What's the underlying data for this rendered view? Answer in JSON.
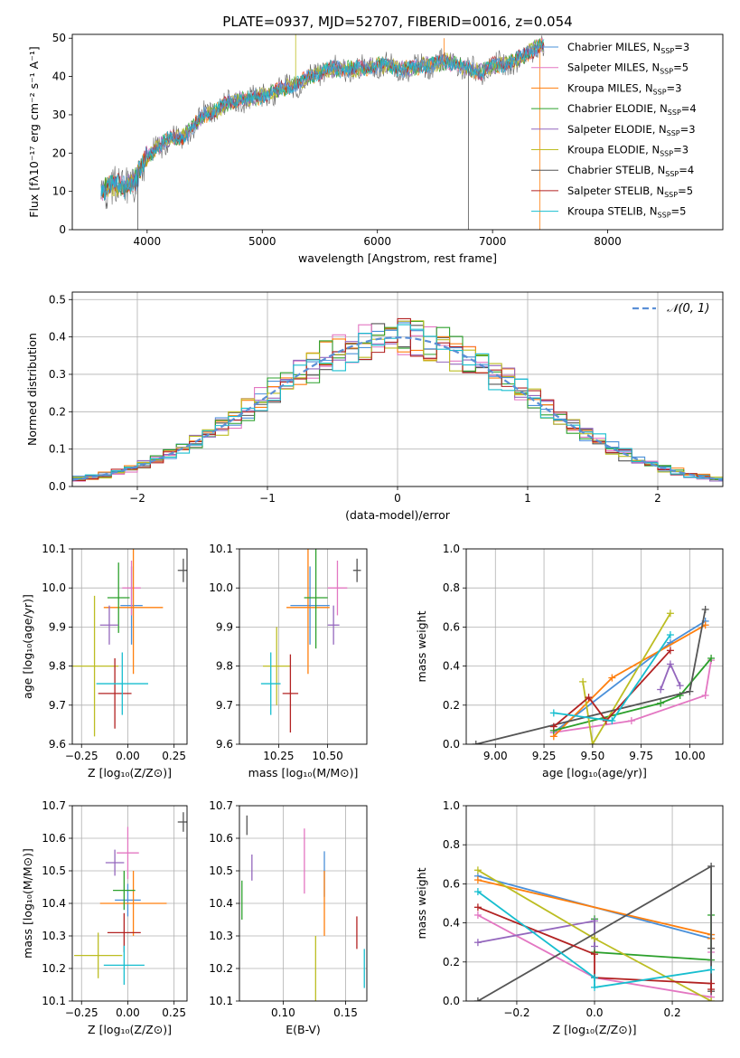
{
  "figure_title": "PLATE=0937, MJD=52707, FIBERID=0016, z=0.054",
  "models": [
    {
      "name": "Chabrier MILES",
      "nssp": "3",
      "color": "#4a90d9"
    },
    {
      "name": "Salpeter MILES",
      "nssp": "5",
      "color": "#e377c2"
    },
    {
      "name": "Kroupa MILES",
      "nssp": "3",
      "color": "#ff7f0e"
    },
    {
      "name": "Chabrier ELODIE",
      "nssp": "4",
      "color": "#2ca02c"
    },
    {
      "name": "Salpeter ELODIE",
      "nssp": "3",
      "color": "#9467bd"
    },
    {
      "name": "Kroupa ELODIE",
      "nssp": "3",
      "color": "#bcbd22"
    },
    {
      "name": "Chabrier STELIB",
      "nssp": "4",
      "color": "#555555"
    },
    {
      "name": "Salpeter STELIB",
      "nssp": "5",
      "color": "#b22222"
    },
    {
      "name": "Kroupa STELIB",
      "nssp": "5",
      "color": "#17becf"
    }
  ],
  "legend_prefix": "N",
  "legend_sub": "SSP",
  "chart_data": [
    {
      "id": "spectrum",
      "type": "line",
      "title": "PLATE=0937, MJD=52707, FIBERID=0016, z=0.054",
      "xlabel": "wavelength [Angstrom, rest frame]",
      "ylabel": "Flux [fλ10⁻¹⁷ erg cm⁻² s⁻¹ A⁻¹]",
      "xlim": [
        3350,
        9000
      ],
      "ylim": [
        0,
        51
      ],
      "xticks": [
        4000,
        5000,
        6000,
        7000,
        8000
      ],
      "yticks": [
        0,
        10,
        20,
        30,
        40,
        50
      ],
      "legend": "top-right",
      "continuum": [
        [
          3600,
          10
        ],
        [
          3700,
          12
        ],
        [
          3800,
          11
        ],
        [
          3900,
          13
        ],
        [
          4000,
          19
        ],
        [
          4100,
          22
        ],
        [
          4200,
          24
        ],
        [
          4300,
          24
        ],
        [
          4400,
          27
        ],
        [
          4500,
          30
        ],
        [
          4600,
          31
        ],
        [
          4700,
          33
        ],
        [
          4800,
          34
        ],
        [
          4900,
          34
        ],
        [
          5000,
          35
        ],
        [
          5100,
          36
        ],
        [
          5200,
          37
        ],
        [
          5300,
          38
        ],
        [
          5400,
          40
        ],
        [
          5500,
          41
        ],
        [
          5600,
          42
        ],
        [
          5700,
          42
        ],
        [
          5800,
          42
        ],
        [
          5900,
          42
        ],
        [
          6000,
          43
        ],
        [
          6100,
          43
        ],
        [
          6200,
          42
        ],
        [
          6300,
          42
        ],
        [
          6400,
          43
        ],
        [
          6500,
          43
        ],
        [
          6600,
          44
        ],
        [
          6700,
          43
        ],
        [
          6800,
          42
        ],
        [
          6900,
          41
        ],
        [
          7000,
          43
        ],
        [
          7100,
          43
        ],
        [
          7200,
          44
        ],
        [
          7300,
          46
        ],
        [
          7400,
          48
        ],
        [
          7450,
          48
        ]
      ],
      "spikes": [
        {
          "x": 3920,
          "y": -2
        },
        {
          "x": 5290,
          "y": 51
        },
        {
          "x": 6580,
          "y": 50
        },
        {
          "x": 6790,
          "y": -2
        },
        {
          "x": 7410,
          "y": -2
        }
      ]
    },
    {
      "id": "residuals",
      "type": "histogram",
      "xlabel": "(data-model)/error",
      "ylabel": "Normed distribution",
      "xlim": [
        -2.5,
        2.5
      ],
      "ylim": [
        0,
        0.52
      ],
      "xticks": [
        -2,
        -1,
        0,
        1,
        2
      ],
      "yticks": [
        0.0,
        0.1,
        0.2,
        0.3,
        0.4,
        0.5
      ],
      "bin_width": 0.1,
      "grid": true,
      "reference_curve": {
        "name": "𝒩(0, 1)",
        "mean": 0,
        "sigma": 1
      },
      "legend": "top-right"
    },
    {
      "id": "age_vs_Z",
      "type": "errorbar",
      "xlabel": "Z [log₁₀(Z/Z⊙)]",
      "ylabel": "age  [log₁₀(age/yr)]",
      "xlim": [
        -0.3,
        0.32
      ],
      "ylim": [
        9.6,
        10.1
      ],
      "xticks": [
        -0.25,
        0.0,
        0.25
      ],
      "yticks": [
        9.6,
        9.7,
        9.8,
        9.9,
        10.0,
        10.1
      ],
      "points": [
        {
          "x": 0.02,
          "y": 9.955,
          "xerr": 0.06,
          "yerr": 0.1,
          "c": 0
        },
        {
          "x": 0.02,
          "y": 10.0,
          "xerr": 0.05,
          "yerr": 0.07,
          "c": 1
        },
        {
          "x": 0.03,
          "y": 9.95,
          "xerr": 0.16,
          "yerr": 0.17,
          "c": 2
        },
        {
          "x": -0.05,
          "y": 9.975,
          "xerr": 0.06,
          "yerr": 0.09,
          "c": 3
        },
        {
          "x": -0.1,
          "y": 9.905,
          "xerr": 0.05,
          "yerr": 0.05,
          "c": 4
        },
        {
          "x": -0.18,
          "y": 9.8,
          "xerr": 0.13,
          "yerr": 0.18,
          "c": 5
        },
        {
          "x": 0.3,
          "y": 10.045,
          "xerr": 0.03,
          "yerr": 0.03,
          "c": 6
        },
        {
          "x": -0.07,
          "y": 9.73,
          "xerr": 0.09,
          "yerr": 0.09,
          "c": 7
        },
        {
          "x": -0.03,
          "y": 9.755,
          "xerr": 0.14,
          "yerr": 0.08,
          "c": 8
        }
      ]
    },
    {
      "id": "age_vs_mass",
      "type": "errorbar",
      "xlabel": "mass [log₁₀(M/M⊙)]",
      "ylabel": "",
      "xlim": [
        10.05,
        10.7
      ],
      "ylim": [
        9.6,
        10.1
      ],
      "xticks": [
        10.25,
        10.5
      ],
      "yticks": [
        9.6,
        9.7,
        9.8,
        9.9,
        10.0,
        10.1
      ],
      "points": [
        {
          "x": 10.41,
          "y": 9.955,
          "xerr": 0.1,
          "yerr": 0.1,
          "c": 0
        },
        {
          "x": 10.55,
          "y": 10.0,
          "xerr": 0.05,
          "yerr": 0.07,
          "c": 1
        },
        {
          "x": 10.4,
          "y": 9.95,
          "xerr": 0.11,
          "yerr": 0.17,
          "c": 2
        },
        {
          "x": 10.44,
          "y": 9.975,
          "xerr": 0.06,
          "yerr": 0.13,
          "c": 3
        },
        {
          "x": 10.53,
          "y": 9.905,
          "xerr": 0.03,
          "yerr": 0.05,
          "c": 4
        },
        {
          "x": 10.24,
          "y": 9.8,
          "xerr": 0.07,
          "yerr": 0.1,
          "c": 5
        },
        {
          "x": 10.65,
          "y": 10.045,
          "xerr": 0.02,
          "yerr": 0.03,
          "c": 6
        },
        {
          "x": 10.31,
          "y": 9.73,
          "xerr": 0.04,
          "yerr": 0.1,
          "c": 7
        },
        {
          "x": 10.21,
          "y": 9.755,
          "xerr": 0.05,
          "yerr": 0.08,
          "c": 8
        }
      ]
    },
    {
      "id": "weight_vs_age",
      "type": "line",
      "xlabel": "age  [log₁₀(age/yr)]",
      "ylabel": "mass weight",
      "xlim": [
        8.85,
        10.17
      ],
      "ylim": [
        0,
        1
      ],
      "xticks": [
        9.0,
        9.25,
        9.5,
        9.75,
        10.0
      ],
      "yticks": [
        0.0,
        0.2,
        0.4,
        0.6,
        0.8,
        1.0
      ],
      "series": [
        {
          "c": 0,
          "x": [
            9.3,
            9.9,
            10.08
          ],
          "y": [
            0.06,
            0.52,
            0.63
          ]
        },
        {
          "c": 1,
          "x": [
            9.3,
            9.7,
            10.08,
            10.11
          ],
          "y": [
            0.06,
            0.12,
            0.25,
            0.43
          ]
        },
        {
          "c": 2,
          "x": [
            9.3,
            9.6,
            10.08
          ],
          "y": [
            0.04,
            0.34,
            0.61
          ]
        },
        {
          "c": 3,
          "x": [
            9.3,
            9.85,
            9.95,
            10.11
          ],
          "y": [
            0.07,
            0.21,
            0.25,
            0.44
          ]
        },
        {
          "c": 4,
          "x": [
            9.85,
            9.9,
            9.95
          ],
          "y": [
            0.28,
            0.41,
            0.3
          ]
        },
        {
          "c": 5,
          "x": [
            9.45,
            9.5,
            9.9
          ],
          "y": [
            0.32,
            0.0,
            0.67
          ]
        },
        {
          "c": 6,
          "x": [
            8.9,
            10.0,
            10.08
          ],
          "y": [
            0.0,
            0.27,
            0.69
          ]
        },
        {
          "c": 7,
          "x": [
            9.3,
            9.48,
            9.57,
            9.9
          ],
          "y": [
            0.09,
            0.24,
            0.12,
            0.48
          ]
        },
        {
          "c": 8,
          "x": [
            9.3,
            9.6,
            9.9
          ],
          "y": [
            0.16,
            0.12,
            0.56
          ]
        }
      ]
    },
    {
      "id": "mass_vs_Z",
      "type": "errorbar",
      "xlabel": "Z [log₁₀(Z/Z⊙)]",
      "ylabel": "mass [log₁₀(M/M⊙)]",
      "xlim": [
        -0.3,
        0.32
      ],
      "ylim": [
        10.1,
        10.7
      ],
      "xticks": [
        -0.25,
        0.0,
        0.25
      ],
      "yticks": [
        10.1,
        10.2,
        10.3,
        10.4,
        10.5,
        10.6,
        10.7
      ],
      "points": [
        {
          "x": 0.0,
          "y": 10.41,
          "xerr": 0.07,
          "yerr": 0.05,
          "c": 0
        },
        {
          "x": 0.0,
          "y": 10.555,
          "xerr": 0.06,
          "yerr": 0.08,
          "c": 1
        },
        {
          "x": 0.03,
          "y": 10.4,
          "xerr": 0.18,
          "yerr": 0.1,
          "c": 2
        },
        {
          "x": -0.02,
          "y": 10.44,
          "xerr": 0.06,
          "yerr": 0.06,
          "c": 3
        },
        {
          "x": -0.07,
          "y": 10.525,
          "xerr": 0.05,
          "yerr": 0.04,
          "c": 4
        },
        {
          "x": -0.16,
          "y": 10.24,
          "xerr": 0.13,
          "yerr": 0.07,
          "c": 5
        },
        {
          "x": 0.3,
          "y": 10.65,
          "xerr": 0.03,
          "yerr": 0.03,
          "c": 6
        },
        {
          "x": -0.02,
          "y": 10.31,
          "xerr": 0.09,
          "yerr": 0.06,
          "c": 7
        },
        {
          "x": -0.02,
          "y": 10.21,
          "xerr": 0.11,
          "yerr": 0.06,
          "c": 8
        }
      ]
    },
    {
      "id": "mass_vs_EBV",
      "type": "errorbar",
      "xlabel": "E(B-V)",
      "ylabel": "",
      "xlim": [
        0.065,
        0.167
      ],
      "ylim": [
        10.1,
        10.7
      ],
      "xticks": [
        0.1,
        0.15
      ],
      "yticks": [
        10.1,
        10.2,
        10.3,
        10.4,
        10.5,
        10.6,
        10.7
      ],
      "points": [
        {
          "x": 0.133,
          "y": 10.49,
          "xerr": 0,
          "yerr": 0.07,
          "c": 0
        },
        {
          "x": 0.117,
          "y": 10.53,
          "xerr": 0,
          "yerr": 0.1,
          "c": 1
        },
        {
          "x": 0.133,
          "y": 10.4,
          "xerr": 0,
          "yerr": 0.1,
          "c": 2
        },
        {
          "x": 0.067,
          "y": 10.41,
          "xerr": 0,
          "yerr": 0.06,
          "c": 3
        },
        {
          "x": 0.075,
          "y": 10.51,
          "xerr": 0,
          "yerr": 0.04,
          "c": 4
        },
        {
          "x": 0.126,
          "y": 10.2,
          "xerr": 0,
          "yerr": 0.1,
          "c": 5
        },
        {
          "x": 0.071,
          "y": 10.64,
          "xerr": 0,
          "yerr": 0.03,
          "c": 6
        },
        {
          "x": 0.159,
          "y": 10.31,
          "xerr": 0,
          "yerr": 0.05,
          "c": 7
        },
        {
          "x": 0.165,
          "y": 10.2,
          "xerr": 0,
          "yerr": 0.06,
          "c": 8
        }
      ]
    },
    {
      "id": "weight_vs_Z",
      "type": "line",
      "xlabel": "Z [log₁₀(Z/Z⊙)]",
      "ylabel": "mass weight",
      "xlim": [
        -0.33,
        0.33
      ],
      "ylim": [
        0,
        1
      ],
      "xticks": [
        -0.2,
        0.0,
        0.2
      ],
      "yticks": [
        0.0,
        0.2,
        0.4,
        0.6,
        0.8,
        1.0
      ],
      "series": [
        {
          "c": 0,
          "x": [
            -0.3,
            0.3,
            0.3
          ],
          "y": [
            0.64,
            0.32,
            0.34
          ]
        },
        {
          "c": 1,
          "x": [
            -0.3,
            0.0,
            0.3,
            0.3
          ],
          "y": [
            0.44,
            0.12,
            0.02,
            0.25
          ]
        },
        {
          "c": 2,
          "x": [
            -0.3,
            0.3,
            0.3
          ],
          "y": [
            0.62,
            0.34,
            0.32
          ]
        },
        {
          "c": 3,
          "x": [
            0.0,
            0.0,
            0.3,
            0.3
          ],
          "y": [
            0.42,
            0.25,
            0.21,
            0.44
          ]
        },
        {
          "c": 4,
          "x": [
            -0.3,
            0.0,
            0.0
          ],
          "y": [
            0.3,
            0.41,
            0.28
          ]
        },
        {
          "c": 5,
          "x": [
            -0.3,
            0.0,
            0.3
          ],
          "y": [
            0.67,
            0.32,
            0.0
          ]
        },
        {
          "c": 6,
          "x": [
            -0.3,
            0.3,
            0.3,
            0.3
          ],
          "y": [
            0.0,
            0.69,
            0.27,
            0.05
          ]
        },
        {
          "c": 7,
          "x": [
            -0.3,
            0.0,
            0.0,
            0.3,
            0.3
          ],
          "y": [
            0.48,
            0.24,
            0.12,
            0.09,
            0.06
          ]
        },
        {
          "c": 8,
          "x": [
            -0.3,
            0.0,
            0.0,
            0.3
          ],
          "y": [
            0.56,
            0.12,
            0.07,
            0.16
          ]
        }
      ]
    }
  ]
}
